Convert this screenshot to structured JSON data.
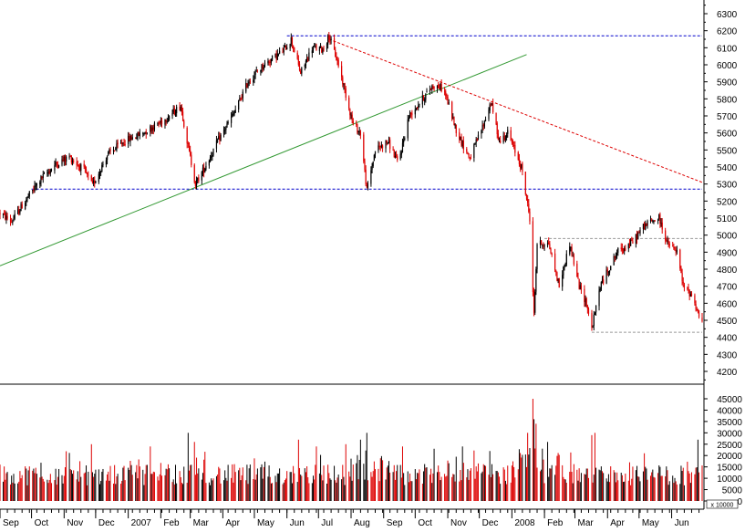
{
  "chart_data": [
    {
      "type": "candlestick",
      "axis_side": "right",
      "grid": false,
      "ylim": [
        4100,
        6400
      ],
      "y_ticks": [
        4200,
        4300,
        4400,
        4500,
        4600,
        4700,
        4800,
        4900,
        5000,
        5100,
        5200,
        5300,
        5400,
        5500,
        5600,
        5700,
        5800,
        5900,
        6000,
        6100,
        6200,
        6300
      ],
      "x_range": [
        "2006-09-01",
        "2008-06-30"
      ],
      "x_labels": [
        {
          "label": "Sep",
          "date": "2006-09-01"
        },
        {
          "label": "Oct",
          "date": "2006-10-01"
        },
        {
          "label": "Nov",
          "date": "2006-11-01"
        },
        {
          "label": "Dec",
          "date": "2006-12-01"
        },
        {
          "label": "2007",
          "date": "2007-01-01"
        },
        {
          "label": "Feb",
          "date": "2007-02-01"
        },
        {
          "label": "Mar",
          "date": "2007-03-01"
        },
        {
          "label": "Apr",
          "date": "2007-04-01"
        },
        {
          "label": "May",
          "date": "2007-05-01"
        },
        {
          "label": "Jun",
          "date": "2007-06-01"
        },
        {
          "label": "Jul",
          "date": "2007-07-01"
        },
        {
          "label": "Aug",
          "date": "2007-08-01"
        },
        {
          "label": "Sep",
          "date": "2007-09-01"
        },
        {
          "label": "Oct",
          "date": "2007-10-01"
        },
        {
          "label": "Nov",
          "date": "2007-11-01"
        },
        {
          "label": "Dec",
          "date": "2007-12-01"
        },
        {
          "label": "2008",
          "date": "2008-01-01"
        },
        {
          "label": "Feb",
          "date": "2008-02-01"
        },
        {
          "label": "Mar",
          "date": "2008-03-01"
        },
        {
          "label": "Apr",
          "date": "2008-04-01"
        },
        {
          "label": "May",
          "date": "2008-05-01"
        },
        {
          "label": "Jun",
          "date": "2008-06-01"
        }
      ],
      "colors": {
        "up": "#000000",
        "down": "#dd0000"
      },
      "price_path": [
        [
          "2006-09-01",
          5130
        ],
        [
          "2006-09-12",
          5080
        ],
        [
          "2006-09-25",
          5200
        ],
        [
          "2006-10-10",
          5330
        ],
        [
          "2006-10-25",
          5420
        ],
        [
          "2006-11-06",
          5460
        ],
        [
          "2006-11-20",
          5380
        ],
        [
          "2006-11-28",
          5290
        ],
        [
          "2006-12-12",
          5470
        ],
        [
          "2006-12-28",
          5550
        ],
        [
          "2007-01-15",
          5600
        ],
        [
          "2007-02-05",
          5680
        ],
        [
          "2007-02-20",
          5760
        ],
        [
          "2007-02-27",
          5520
        ],
        [
          "2007-03-06",
          5300
        ],
        [
          "2007-03-15",
          5400
        ],
        [
          "2007-03-28",
          5560
        ],
        [
          "2007-04-12",
          5720
        ],
        [
          "2007-04-25",
          5900
        ],
        [
          "2007-05-10",
          6000
        ],
        [
          "2007-05-28",
          6080
        ],
        [
          "2007-06-05",
          6150
        ],
        [
          "2007-06-14",
          5950
        ],
        [
          "2007-06-25",
          6100
        ],
        [
          "2007-07-05",
          6090
        ],
        [
          "2007-07-11",
          6170
        ],
        [
          "2007-07-20",
          6000
        ],
        [
          "2007-07-28",
          5800
        ],
        [
          "2007-08-03",
          5650
        ],
        [
          "2007-08-10",
          5600
        ],
        [
          "2007-08-16",
          5260
        ],
        [
          "2007-08-24",
          5500
        ],
        [
          "2007-09-05",
          5550
        ],
        [
          "2007-09-15",
          5420
        ],
        [
          "2007-09-25",
          5700
        ],
        [
          "2007-10-08",
          5800
        ],
        [
          "2007-10-18",
          5880
        ],
        [
          "2007-10-28",
          5860
        ],
        [
          "2007-11-10",
          5600
        ],
        [
          "2007-11-22",
          5450
        ],
        [
          "2007-12-05",
          5650
        ],
        [
          "2007-12-12",
          5780
        ],
        [
          "2007-12-20",
          5550
        ],
        [
          "2007-12-28",
          5600
        ],
        [
          "2008-01-10",
          5400
        ],
        [
          "2008-01-18",
          5100
        ],
        [
          "2008-01-22",
          4530
        ],
        [
          "2008-01-25",
          4950
        ],
        [
          "2008-02-05",
          4950
        ],
        [
          "2008-02-15",
          4700
        ],
        [
          "2008-02-25",
          4950
        ],
        [
          "2008-03-05",
          4700
        ],
        [
          "2008-03-12",
          4600
        ],
        [
          "2008-03-17",
          4450
        ],
        [
          "2008-03-25",
          4700
        ],
        [
          "2008-04-10",
          4900
        ],
        [
          "2008-04-25",
          4960
        ],
        [
          "2008-05-05",
          5050
        ],
        [
          "2008-05-12",
          5080
        ],
        [
          "2008-05-20",
          5100
        ],
        [
          "2008-05-28",
          4950
        ],
        [
          "2008-06-06",
          4900
        ],
        [
          "2008-06-12",
          4700
        ],
        [
          "2008-06-20",
          4650
        ],
        [
          "2008-06-30",
          4480
        ]
      ],
      "lines": [
        {
          "kind": "horizontal",
          "value": 6170,
          "from": "2007-06-01",
          "to": "2008-06-30",
          "color": "#0000cc",
          "style": "dashed"
        },
        {
          "kind": "horizontal",
          "value": 5270,
          "from": "2006-10-01",
          "to": "2008-06-30",
          "color": "#0000cc",
          "style": "dashed"
        },
        {
          "kind": "horizontal",
          "value": 4980,
          "from": "2008-02-01",
          "to": "2008-06-30",
          "color": "#999999",
          "style": "dashed"
        },
        {
          "kind": "horizontal",
          "value": 4430,
          "from": "2008-03-17",
          "to": "2008-06-30",
          "color": "#999999",
          "style": "dashed"
        },
        {
          "kind": "trend",
          "points": [
            [
              "2006-09-01",
              4820
            ],
            [
              "2008-01-15",
              6060
            ]
          ],
          "color": "#339933",
          "style": "solid"
        },
        {
          "kind": "trend",
          "points": [
            [
              "2007-07-11",
              6150
            ],
            [
              "2008-06-30",
              5310
            ]
          ],
          "color": "#dd0000",
          "style": "dashed"
        }
      ]
    },
    {
      "type": "bar",
      "axis_side": "right",
      "ylim": [
        0,
        47000
      ],
      "y_ticks": [
        0,
        5000,
        10000,
        15000,
        20000,
        25000,
        30000,
        35000,
        40000,
        45000
      ],
      "unit_label": "x 10000",
      "colors": {
        "up": "#000000",
        "down": "#dd0000"
      },
      "volume_base": 12500,
      "spikes": [
        {
          "date": "2006-09-24",
          "value": 27000
        },
        {
          "date": "2006-11-27",
          "value": 25000
        },
        {
          "date": "2007-01-22",
          "value": 24000
        },
        {
          "date": "2007-02-27",
          "value": 30000
        },
        {
          "date": "2007-03-05",
          "value": 26000
        },
        {
          "date": "2007-06-12",
          "value": 27000
        },
        {
          "date": "2007-06-29",
          "value": 24000
        },
        {
          "date": "2007-07-27",
          "value": 25000
        },
        {
          "date": "2007-08-10",
          "value": 27000
        },
        {
          "date": "2007-08-16",
          "value": 30000
        },
        {
          "date": "2007-09-19",
          "value": 24000
        },
        {
          "date": "2007-10-19",
          "value": 23000
        },
        {
          "date": "2007-11-15",
          "value": 24000
        },
        {
          "date": "2007-12-11",
          "value": 22000
        },
        {
          "date": "2008-01-16",
          "value": 30000
        },
        {
          "date": "2008-01-21",
          "value": 45000
        },
        {
          "date": "2008-01-22",
          "value": 36000
        },
        {
          "date": "2008-01-24",
          "value": 34000
        },
        {
          "date": "2008-02-04",
          "value": 26000
        },
        {
          "date": "2008-03-17",
          "value": 29000
        },
        {
          "date": "2008-03-20",
          "value": 30000
        },
        {
          "date": "2008-05-06",
          "value": 21000
        },
        {
          "date": "2008-06-26",
          "value": 27000
        }
      ]
    }
  ]
}
